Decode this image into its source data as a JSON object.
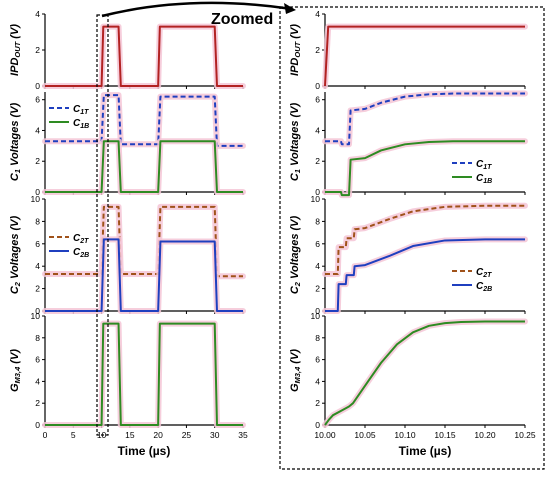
{
  "annotation": "Zoomed",
  "colors": {
    "IPD_OUT": "#b22222",
    "C1T": "#1f3fbf",
    "C1B": "#2e8b22",
    "C2T": "#a0521a",
    "C2B": "#1f3fbf",
    "GM": "#2e8b22",
    "glow": "#f5c6d6"
  },
  "chart_data": [
    {
      "id": "left",
      "type": "line",
      "xlabel": "Time (µs)",
      "xlim": [
        0,
        35
      ],
      "xticks": [
        "0",
        "5",
        "10",
        "15",
        "20",
        "25",
        "30",
        "35"
      ],
      "panels": [
        {
          "id": "ipd",
          "ylabel": {
            "main": "IPD",
            "sub": "OUT",
            "unit": " (V)"
          },
          "ylim": [
            0,
            4
          ],
          "yticks": [
            "0",
            "2",
            "4"
          ],
          "series": [
            {
              "name": "IPD_OUT",
              "color_key": "IPD_OUT",
              "dash": false,
              "x": [
                0,
                10,
                10.3,
                13,
                13.4,
                20,
                20.3,
                30,
                30.4,
                35
              ],
              "y": [
                0,
                0,
                3.3,
                3.3,
                0,
                0,
                3.3,
                3.3,
                0,
                0
              ]
            }
          ],
          "legend": []
        },
        {
          "id": "c1",
          "ylabel": {
            "main": "C",
            "sub": "1",
            "unit": " Voltages (V)"
          },
          "ylim": [
            0,
            6.5
          ],
          "yticks": [
            "0",
            "2",
            "4",
            "6"
          ],
          "series": [
            {
              "name": "C1T",
              "color_key": "C1T",
              "dash": true,
              "x": [
                0,
                10,
                10.4,
                13,
                13.4,
                20,
                20.4,
                30,
                30.4,
                35
              ],
              "y": [
                3.3,
                3.3,
                6.3,
                6.3,
                3.1,
                3.1,
                6.2,
                6.2,
                3.0,
                3.0
              ]
            },
            {
              "name": "C1B",
              "color_key": "C1B",
              "dash": false,
              "x": [
                0,
                10,
                10.4,
                13,
                13.4,
                20,
                20.4,
                30,
                30.4,
                35
              ],
              "y": [
                0,
                0,
                3.3,
                3.3,
                0,
                0,
                3.3,
                3.3,
                0,
                0
              ]
            }
          ],
          "legend": [
            {
              "main": "C",
              "sub": "1T",
              "color_key": "C1T",
              "dash": true
            },
            {
              "main": "C",
              "sub": "1B",
              "color_key": "C1B",
              "dash": false
            }
          ]
        },
        {
          "id": "c2",
          "ylabel": {
            "main": "C",
            "sub": "2",
            "unit": " Voltages (V)"
          },
          "ylim": [
            0,
            10
          ],
          "yticks": [
            "0",
            "2",
            "4",
            "6",
            "8",
            "10"
          ],
          "series": [
            {
              "name": "C2T",
              "color_key": "C2T",
              "dash": true,
              "x": [
                0,
                10,
                10.4,
                13,
                13.4,
                20,
                20.4,
                30,
                30.4,
                35
              ],
              "y": [
                3.3,
                3.3,
                9.3,
                9.3,
                3.3,
                3.3,
                9.3,
                9.3,
                3.1,
                3.1
              ]
            },
            {
              "name": "C2B",
              "color_key": "C2B",
              "dash": false,
              "x": [
                0,
                10,
                10.4,
                13,
                13.4,
                20,
                20.4,
                30,
                30.4,
                35
              ],
              "y": [
                0,
                0,
                6.4,
                6.4,
                0,
                0,
                6.2,
                6.2,
                0,
                0
              ]
            }
          ],
          "legend": [
            {
              "main": "C",
              "sub": "2T",
              "color_key": "C2T",
              "dash": true
            },
            {
              "main": "C",
              "sub": "2B",
              "color_key": "C2B",
              "dash": false
            }
          ]
        },
        {
          "id": "gm",
          "ylabel": {
            "main": "G",
            "sub": "M3,4",
            "unit": " (V)"
          },
          "ylim": [
            0,
            10
          ],
          "yticks": [
            "0",
            "2",
            "4",
            "6",
            "8",
            "10"
          ],
          "series": [
            {
              "name": "GM34",
              "color_key": "GM",
              "dash": false,
              "x": [
                0,
                10,
                10.3,
                13,
                13.4,
                20,
                20.3,
                30,
                30.4,
                35
              ],
              "y": [
                0,
                0,
                9.3,
                9.3,
                0,
                0,
                9.3,
                9.3,
                0,
                0
              ]
            }
          ],
          "legend": []
        }
      ]
    },
    {
      "id": "right",
      "type": "line",
      "xlabel": "Time (µs)",
      "xlim": [
        10.0,
        10.25
      ],
      "xticks": [
        "10.00",
        "10.05",
        "10.10",
        "10.15",
        "10.20",
        "10.25"
      ],
      "panels": [
        {
          "id": "ipd",
          "ylabel": {
            "main": "IPD",
            "sub": "OUT",
            "unit": " (V)"
          },
          "ylim": [
            0,
            4
          ],
          "yticks": [
            "0",
            "2",
            "4"
          ],
          "series": [
            {
              "name": "IPD_OUT",
              "color_key": "IPD_OUT",
              "dash": false,
              "x": [
                10.0,
                10.004,
                10.25
              ],
              "y": [
                0,
                3.3,
                3.3
              ]
            }
          ],
          "legend": []
        },
        {
          "id": "c1",
          "ylabel": {
            "main": "C",
            "sub": "1",
            "unit": " Voltages (V)"
          },
          "ylim": [
            0,
            6.5
          ],
          "yticks": [
            "0",
            "2",
            "4",
            "6"
          ],
          "series": [
            {
              "name": "C1T",
              "color_key": "C1T",
              "dash": true,
              "x": [
                10.0,
                10.02,
                10.021,
                10.03,
                10.032,
                10.05,
                10.07,
                10.1,
                10.13,
                10.16,
                10.2,
                10.25
              ],
              "y": [
                3.3,
                3.3,
                3.1,
                3.1,
                5.3,
                5.4,
                5.8,
                6.2,
                6.35,
                6.4,
                6.4,
                6.4
              ]
            },
            {
              "name": "C1B",
              "color_key": "C1B",
              "dash": false,
              "x": [
                10.0,
                10.02,
                10.021,
                10.03,
                10.032,
                10.05,
                10.07,
                10.1,
                10.13,
                10.16,
                10.2,
                10.25
              ],
              "y": [
                0,
                0,
                -0.2,
                -0.2,
                2.1,
                2.2,
                2.7,
                3.1,
                3.25,
                3.3,
                3.3,
                3.3
              ]
            }
          ],
          "legend": [
            {
              "main": "C",
              "sub": "1T",
              "color_key": "C1T",
              "dash": true
            },
            {
              "main": "C",
              "sub": "1B",
              "color_key": "C1B",
              "dash": false
            }
          ]
        },
        {
          "id": "c2",
          "ylabel": {
            "main": "C",
            "sub": "2",
            "unit": " Voltages (V)"
          },
          "ylim": [
            0,
            10
          ],
          "yticks": [
            "0",
            "2",
            "4",
            "6",
            "8",
            "10"
          ],
          "series": [
            {
              "name": "C2T",
              "color_key": "C2T",
              "dash": true,
              "x": [
                10.0,
                10.016,
                10.017,
                10.026,
                10.027,
                10.036,
                10.037,
                10.05,
                10.08,
                10.11,
                10.15,
                10.2,
                10.25
              ],
              "y": [
                3.3,
                3.3,
                5.7,
                5.7,
                6.5,
                6.5,
                7.3,
                7.4,
                8.2,
                8.9,
                9.3,
                9.4,
                9.4
              ]
            },
            {
              "name": "C2B",
              "color_key": "C2B",
              "dash": false,
              "x": [
                10.0,
                10.016,
                10.017,
                10.026,
                10.027,
                10.036,
                10.037,
                10.05,
                10.08,
                10.11,
                10.15,
                10.2,
                10.25
              ],
              "y": [
                0,
                0,
                2.4,
                2.4,
                3.2,
                3.2,
                4.0,
                4.1,
                4.9,
                5.8,
                6.3,
                6.4,
                6.4
              ]
            }
          ],
          "legend": [
            {
              "main": "C",
              "sub": "2T",
              "color_key": "C2T",
              "dash": true
            },
            {
              "main": "C",
              "sub": "2B",
              "color_key": "C2B",
              "dash": false
            }
          ]
        },
        {
          "id": "gm",
          "ylabel": {
            "main": "G",
            "sub": "M3,4",
            "unit": " (V)"
          },
          "ylim": [
            0,
            10
          ],
          "yticks": [
            "0",
            "2",
            "4",
            "6",
            "8",
            "10"
          ],
          "series": [
            {
              "name": "GM34",
              "color_key": "GM",
              "dash": false,
              "x": [
                10.0,
                10.005,
                10.01,
                10.02,
                10.03,
                10.035,
                10.05,
                10.07,
                10.09,
                10.11,
                10.13,
                10.15,
                10.17,
                10.2,
                10.25
              ],
              "y": [
                0,
                0.5,
                0.9,
                1.3,
                1.7,
                2.0,
                3.6,
                5.7,
                7.4,
                8.5,
                9.1,
                9.35,
                9.45,
                9.5,
                9.5
              ]
            }
          ],
          "legend": []
        }
      ]
    }
  ]
}
